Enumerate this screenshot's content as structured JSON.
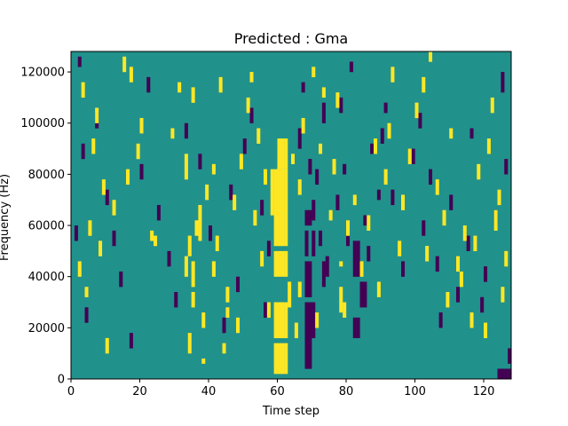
{
  "chart_data": {
    "type": "heatmap",
    "title": "Predicted : Gma",
    "xlabel": "Time step",
    "ylabel": "Frequency (Hz)",
    "xlim": [
      0,
      128
    ],
    "ylim": [
      0,
      128000
    ],
    "x_ticks": [
      0,
      20,
      40,
      60,
      80,
      100,
      120
    ],
    "y_ticks": [
      0,
      20000,
      40000,
      60000,
      80000,
      100000,
      120000
    ],
    "grid": false,
    "legend": "none",
    "colors": {
      "background": "#21918c",
      "high": "#fde725",
      "low": "#440154"
    },
    "n_time_steps": 128,
    "n_freq_bins": 64,
    "values_legend": {
      "0": "background (mid)",
      "1": "high",
      "-1": "low"
    },
    "high_cells": [
      [
        59,
        1,
        6
      ],
      [
        60,
        1,
        6
      ],
      [
        61,
        1,
        6
      ],
      [
        62,
        1,
        6
      ],
      [
        59,
        8,
        14
      ],
      [
        60,
        8,
        14
      ],
      [
        61,
        8,
        14
      ],
      [
        62,
        8,
        14
      ],
      [
        63,
        14,
        18
      ],
      [
        59,
        20,
        24
      ],
      [
        60,
        20,
        24
      ],
      [
        61,
        20,
        24
      ],
      [
        62,
        20,
        24
      ],
      [
        59,
        26,
        31
      ],
      [
        60,
        26,
        31
      ],
      [
        61,
        26,
        31
      ],
      [
        62,
        26,
        31
      ],
      [
        58,
        32,
        40
      ],
      [
        59,
        32,
        40
      ],
      [
        60,
        32,
        40
      ],
      [
        61,
        32,
        40
      ],
      [
        62,
        32,
        40
      ],
      [
        60,
        41,
        46
      ],
      [
        61,
        41,
        46
      ],
      [
        62,
        41,
        46
      ],
      [
        38,
        3,
        3
      ],
      [
        45,
        12,
        13
      ],
      [
        34,
        5,
        8
      ],
      [
        35,
        14,
        16
      ],
      [
        35,
        18,
        22
      ],
      [
        37,
        27,
        33
      ],
      [
        38,
        10,
        12
      ],
      [
        44,
        5,
        6
      ],
      [
        48,
        9,
        11
      ],
      [
        33,
        20,
        23
      ],
      [
        34,
        24,
        27
      ],
      [
        36,
        28,
        30
      ],
      [
        39,
        35,
        37
      ],
      [
        41,
        40,
        41
      ],
      [
        29,
        47,
        48
      ],
      [
        31,
        56,
        57
      ],
      [
        33,
        39,
        43
      ],
      [
        35,
        54,
        56
      ],
      [
        23,
        27,
        28
      ],
      [
        24,
        26,
        27
      ],
      [
        19,
        43,
        45
      ],
      [
        20,
        48,
        50
      ],
      [
        17,
        58,
        60
      ],
      [
        15,
        60,
        62
      ],
      [
        12,
        32,
        34
      ],
      [
        16,
        38,
        40
      ],
      [
        4,
        16,
        17
      ],
      [
        5,
        28,
        30
      ],
      [
        2,
        20,
        22
      ],
      [
        6,
        44,
        46
      ],
      [
        7,
        50,
        52
      ],
      [
        3,
        55,
        57
      ],
      [
        8,
        24,
        26
      ],
      [
        9,
        36,
        38
      ],
      [
        10,
        5,
        7
      ],
      [
        78,
        13,
        17
      ],
      [
        79,
        12,
        14
      ],
      [
        78,
        22,
        22
      ],
      [
        80,
        28,
        30
      ],
      [
        75,
        31,
        32
      ],
      [
        76,
        40,
        42
      ],
      [
        77,
        53,
        55
      ],
      [
        82,
        34,
        35
      ],
      [
        84,
        20,
        22
      ],
      [
        86,
        29,
        31
      ],
      [
        88,
        44,
        46
      ],
      [
        89,
        16,
        18
      ],
      [
        91,
        38,
        40
      ],
      [
        92,
        47,
        49
      ],
      [
        93,
        58,
        60
      ],
      [
        95,
        24,
        26
      ],
      [
        96,
        33,
        35
      ],
      [
        98,
        42,
        44
      ],
      [
        100,
        51,
        53
      ],
      [
        102,
        56,
        58
      ],
      [
        104,
        62,
        63
      ],
      [
        106,
        36,
        38
      ],
      [
        108,
        30,
        32
      ],
      [
        109,
        14,
        16
      ],
      [
        112,
        21,
        23
      ],
      [
        113,
        18,
        20
      ],
      [
        114,
        27,
        29
      ],
      [
        116,
        10,
        12
      ],
      [
        117,
        25,
        27
      ],
      [
        118,
        39,
        41
      ],
      [
        120,
        8,
        10
      ],
      [
        121,
        44,
        46
      ],
      [
        122,
        52,
        54
      ],
      [
        123,
        29,
        32
      ],
      [
        124,
        34,
        36
      ],
      [
        125,
        15,
        17
      ],
      [
        126,
        22,
        24
      ],
      [
        110,
        47,
        48
      ],
      [
        103,
        23,
        25
      ],
      [
        73,
        55,
        56
      ],
      [
        66,
        36,
        38
      ],
      [
        67,
        48,
        50
      ],
      [
        70,
        59,
        60
      ],
      [
        71,
        10,
        12
      ],
      [
        72,
        44,
        45
      ],
      [
        51,
        52,
        54
      ],
      [
        52,
        58,
        59
      ],
      [
        54,
        46,
        48
      ],
      [
        56,
        38,
        40
      ],
      [
        57,
        12,
        14
      ],
      [
        55,
        22,
        24
      ],
      [
        53,
        30,
        32
      ],
      [
        64,
        42,
        43
      ],
      [
        65,
        8,
        10
      ],
      [
        66,
        16,
        18
      ],
      [
        45,
        15,
        17
      ],
      [
        47,
        33,
        35
      ],
      [
        49,
        41,
        43
      ],
      [
        43,
        56,
        58
      ],
      [
        42,
        25,
        27
      ],
      [
        41,
        20,
        22
      ]
    ],
    "low_cells": [
      [
        68,
        2,
        7
      ],
      [
        69,
        2,
        7
      ],
      [
        68,
        8,
        14
      ],
      [
        69,
        8,
        14
      ],
      [
        70,
        8,
        14
      ],
      [
        68,
        16,
        22
      ],
      [
        69,
        16,
        22
      ],
      [
        68,
        24,
        28
      ],
      [
        70,
        24,
        28
      ],
      [
        68,
        30,
        32
      ],
      [
        69,
        30,
        32
      ],
      [
        70,
        31,
        34
      ],
      [
        82,
        8,
        11
      ],
      [
        83,
        8,
        11
      ],
      [
        84,
        14,
        18
      ],
      [
        85,
        14,
        18
      ],
      [
        82,
        20,
        26
      ],
      [
        83,
        20,
        26
      ],
      [
        73,
        18,
        22
      ],
      [
        74,
        20,
        23
      ],
      [
        72,
        26,
        28
      ],
      [
        77,
        33,
        35
      ],
      [
        80,
        26,
        29
      ],
      [
        86,
        23,
        25
      ],
      [
        71,
        38,
        40
      ],
      [
        69,
        40,
        42
      ],
      [
        66,
        45,
        48
      ],
      [
        67,
        56,
        57
      ],
      [
        73,
        50,
        53
      ],
      [
        78,
        52,
        54
      ],
      [
        79,
        40,
        41
      ],
      [
        81,
        60,
        61
      ],
      [
        85,
        30,
        31
      ],
      [
        87,
        44,
        45
      ],
      [
        89,
        35,
        36
      ],
      [
        90,
        46,
        48
      ],
      [
        91,
        52,
        53
      ],
      [
        93,
        34,
        36
      ],
      [
        96,
        20,
        22
      ],
      [
        99,
        42,
        44
      ],
      [
        101,
        49,
        51
      ],
      [
        102,
        28,
        30
      ],
      [
        104,
        38,
        40
      ],
      [
        106,
        21,
        23
      ],
      [
        107,
        10,
        12
      ],
      [
        110,
        33,
        35
      ],
      [
        112,
        15,
        17
      ],
      [
        115,
        25,
        27
      ],
      [
        116,
        47,
        48
      ],
      [
        119,
        13,
        15
      ],
      [
        120,
        19,
        21
      ],
      [
        123,
        30,
        32
      ],
      [
        125,
        56,
        59
      ],
      [
        126,
        40,
        42
      ],
      [
        127,
        3,
        5
      ],
      [
        126,
        0,
        1
      ],
      [
        127,
        0,
        1
      ],
      [
        124,
        0,
        1
      ],
      [
        125,
        0,
        1
      ],
      [
        55,
        32,
        34
      ],
      [
        56,
        12,
        14
      ],
      [
        57,
        24,
        26
      ],
      [
        50,
        44,
        46
      ],
      [
        52,
        50,
        52
      ],
      [
        48,
        17,
        19
      ],
      [
        44,
        9,
        11
      ],
      [
        46,
        35,
        37
      ],
      [
        40,
        27,
        29
      ],
      [
        37,
        41,
        43
      ],
      [
        33,
        47,
        49
      ],
      [
        30,
        14,
        16
      ],
      [
        28,
        22,
        24
      ],
      [
        25,
        31,
        33
      ],
      [
        22,
        56,
        58
      ],
      [
        20,
        39,
        41
      ],
      [
        17,
        6,
        8
      ],
      [
        14,
        18,
        20
      ],
      [
        12,
        26,
        28
      ],
      [
        10,
        34,
        36
      ],
      [
        7,
        49,
        51
      ],
      [
        4,
        11,
        13
      ],
      [
        3,
        43,
        45
      ],
      [
        2,
        61,
        62
      ],
      [
        1,
        27,
        29
      ]
    ]
  }
}
